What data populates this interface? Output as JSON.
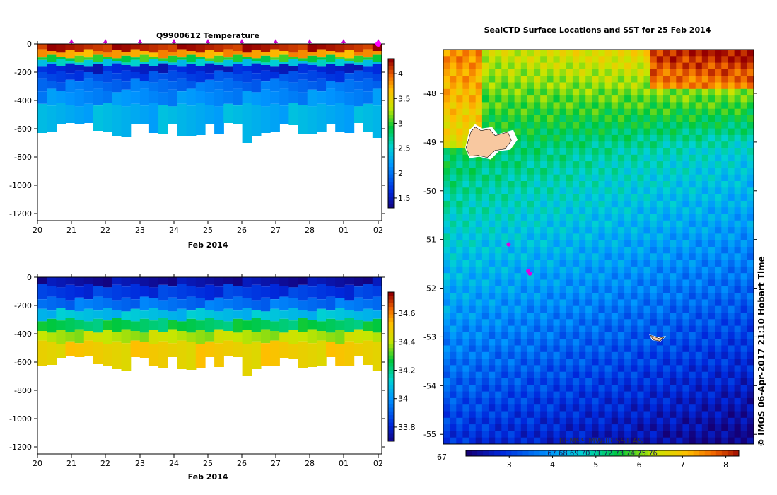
{
  "chart_data": [
    {
      "type": "heatmap",
      "title": "Q9900612  Temperature",
      "xlabel": "Feb 2014",
      "x_ticks": [
        "20",
        "21",
        "22",
        "23",
        "24",
        "25",
        "26",
        "27",
        "28",
        "01",
        "02"
      ],
      "y_ticks": [
        "0",
        "-200",
        "-400",
        "-600",
        "-800",
        "-1000",
        "-1200"
      ],
      "ylim": [
        -1250,
        0
      ],
      "colorbar_ticks": [
        "4",
        "3.5",
        "3",
        "2.5",
        "2",
        "1.5"
      ],
      "colorbar_range": [
        1.3,
        4.3
      ],
      "profile_depths": [
        630,
        620,
        570,
        560,
        565,
        560,
        615,
        625,
        650,
        660,
        565,
        570,
        630,
        640,
        565,
        650,
        655,
        645,
        565,
        635,
        560,
        565,
        700,
        650,
        630,
        625,
        570,
        575,
        640,
        635,
        625,
        565,
        625,
        630,
        560,
        620,
        665
      ],
      "markers": [
        "21",
        "22",
        "23",
        "24",
        "25",
        "26",
        "27",
        "28",
        "01",
        "02"
      ],
      "bands": [
        {
          "depth": 50,
          "value": 4.2
        },
        {
          "depth": 90,
          "value": 3.8
        },
        {
          "depth": 120,
          "value": 3.0
        },
        {
          "depth": 150,
          "value": 2.5
        },
        {
          "depth": 200,
          "value": 1.6
        },
        {
          "depth": 260,
          "value": 1.8
        },
        {
          "depth": 330,
          "value": 2.0
        },
        {
          "depth": 430,
          "value": 2.15
        },
        {
          "depth": 700,
          "value": 2.35
        }
      ]
    },
    {
      "type": "heatmap",
      "title": "",
      "xlabel": "Feb 2014",
      "x_ticks": [
        "20",
        "21",
        "22",
        "23",
        "24",
        "25",
        "26",
        "27",
        "28",
        "01",
        "02"
      ],
      "y_ticks": [
        "0",
        "-200",
        "-400",
        "-600",
        "-800",
        "-1000",
        "-1200"
      ],
      "ylim": [
        -1250,
        0
      ],
      "colorbar_ticks": [
        "34.6",
        "34.4",
        "34.2",
        "34",
        "33.8"
      ],
      "colorbar_range": [
        33.7,
        34.75
      ],
      "bands": [
        {
          "depth": 60,
          "value": 33.75
        },
        {
          "depth": 150,
          "value": 33.85
        },
        {
          "depth": 230,
          "value": 33.95
        },
        {
          "depth": 300,
          "value": 34.1
        },
        {
          "depth": 380,
          "value": 34.25
        },
        {
          "depth": 460,
          "value": 34.4
        },
        {
          "depth": 700,
          "value": 34.5
        }
      ]
    },
    {
      "type": "heatmap",
      "title": "SealCTD Surface Locations and SST for 25 Feb 2014",
      "y_ticks": [
        "-48",
        "-49",
        "-50",
        "-51",
        "-52",
        "-53",
        "-54",
        "-55"
      ],
      "ylim": [
        -55.2,
        -47.1
      ],
      "colorbar_ticks": [
        "3",
        "4",
        "5",
        "6",
        "7",
        "8"
      ],
      "colorbar_range": [
        2,
        8.3
      ],
      "watermark": "REMSS MW-IR SST AS",
      "hidden_tick_labels": "67  68  69  70  71  72  73  74  75  76",
      "credit": "© IMOS 06-Apr-2017 21:10 Hobart Time",
      "seal_locations": [
        {
          "lon": 69.0,
          "lat": -51.1
        },
        {
          "lon": 69.6,
          "lat": -51.65
        },
        {
          "lon": 69.65,
          "lat": -51.7
        }
      ]
    }
  ]
}
